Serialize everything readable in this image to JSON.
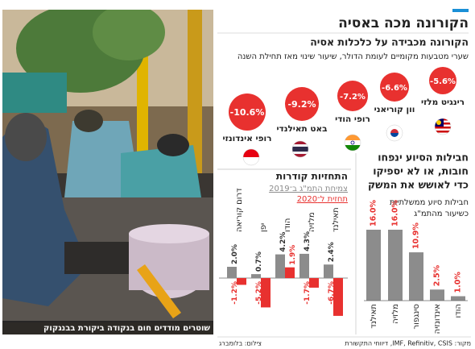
{
  "header": {
    "title": "הקורונה מכה באסיה",
    "subtitle": "הקורונה מכבידה על כלכלות אסיה",
    "description": "שערי מטבעות מקומיים לעומת הדולר, שיעור שינוי מאז תחילת השנה"
  },
  "currencies": [
    {
      "change": "-5.6%",
      "name": "רינגיט מלזי"
    },
    {
      "change": "-6.6%",
      "name": "וון קוריאני"
    },
    {
      "change": "-7.2%",
      "name": "רופי הודי"
    },
    {
      "change": "-9.2%",
      "name": "באט תאילנדי"
    },
    {
      "change": "-10.6%",
      "name": "רופי אינדונזי"
    }
  ],
  "photo": {
    "caption": "שוטרים מודדים חום בנקודה ביקורת בבנגקוק"
  },
  "chart_data": [
    {
      "type": "bar",
      "title_lines": [
        "חבילות הסיוע ינפחו",
        "חובות, או לא יספיקו",
        "כדי לאושש את המשק"
      ],
      "subtitle_lines": [
        "חבילות סיוע ממשלתיות",
        "כשיעור מהתמ\"ג"
      ],
      "categories": [
        "תאילנד",
        "מלזיה",
        "סינגפור",
        "אינדונזיה",
        "הודו"
      ],
      "values": [
        16.0,
        16.0,
        10.9,
        2.5,
        1.0
      ],
      "value_labels": [
        "16.0%",
        "16.0%",
        "10.9%",
        "2.5%",
        "1.0%"
      ],
      "color": "#8c8c8c",
      "label_color": "#e8312f"
    },
    {
      "type": "grouped_bar",
      "title": "התחזיות קודרות",
      "categories": [
        "תאילנד",
        "מלזיה",
        "הודו",
        "יפן",
        "דרום קוריאה"
      ],
      "series": [
        {
          "name": "צמיחת התמ\"ג ב־2019",
          "color": "#8c8c8c",
          "values": [
            2.4,
            4.3,
            4.2,
            0.7,
            2.0
          ],
          "value_labels": [
            "2.4%",
            "4.3%",
            "4.2%",
            "0.7%",
            "2.0%"
          ]
        },
        {
          "name": "תחזית ל־2020",
          "color": "#e8312f",
          "values": [
            -6.7,
            -1.7,
            1.9,
            -5.2,
            -1.2
          ],
          "value_labels": [
            "-6.7%",
            "-1.7%",
            "1.9%",
            "-5.2%",
            "-1.2%"
          ]
        }
      ]
    }
  ],
  "footer": {
    "credit": "צילום: בלומברג",
    "source": "מקור: IMF, Refinitiv, CSIS, דיווחי התקשורת"
  }
}
